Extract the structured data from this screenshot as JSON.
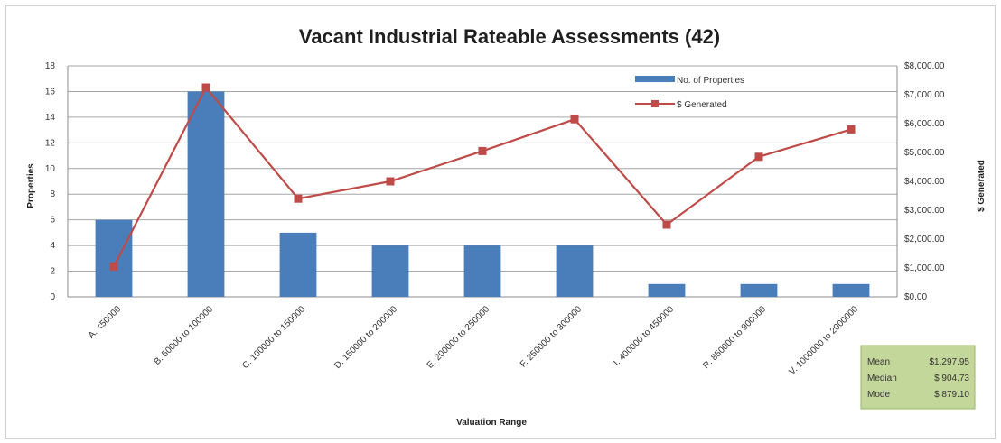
{
  "chart_data": {
    "type": "bar",
    "title": "Vacant Industrial Rateable Assessments (42)",
    "xlabel": "Valuation Range",
    "ylabel": "Properties",
    "y2label": "$ Generated",
    "ylim": [
      0,
      18
    ],
    "y2lim": [
      0,
      8000
    ],
    "yticks": [
      "0",
      "2",
      "4",
      "6",
      "8",
      "10",
      "12",
      "14",
      "16",
      "18"
    ],
    "y2ticks": [
      "$0.00",
      "$1,000.00",
      "$2,000.00",
      "$3,000.00",
      "$4,000.00",
      "$5,000.00",
      "$6,000.00",
      "$7,000.00",
      "$8,000.00"
    ],
    "categories": [
      "A. <50000",
      "B. 50000 to 100000",
      "C. 100000 to 150000",
      "D. 150000 to 200000",
      "E. 200000 to 250000",
      "F. 250000 to 300000",
      "I. 400000 to 450000",
      "R. 850000 to 900000",
      "V. 1000000 to 2000000"
    ],
    "series": [
      {
        "name": "No. of Properties",
        "type": "bar",
        "axis": "left",
        "values": [
          6,
          16,
          5,
          4,
          4,
          4,
          1,
          1,
          1
        ]
      },
      {
        "name": "$ Generated",
        "type": "line",
        "axis": "right",
        "values": [
          1050,
          7250,
          3400,
          4000,
          5050,
          6150,
          2500,
          4850,
          5800
        ]
      }
    ],
    "legend_position": "top-right",
    "grid": true,
    "colors": {
      "bar": "#4a7ebb",
      "line": "#be4b48"
    },
    "stats_box": {
      "rows": [
        {
          "label": "Mean",
          "value": "$1,297.95"
        },
        {
          "label": "Median",
          "value": "$ 904.73"
        },
        {
          "label": "Mode",
          "value": "$ 879.10"
        }
      ],
      "background": "#c4d79b"
    }
  }
}
